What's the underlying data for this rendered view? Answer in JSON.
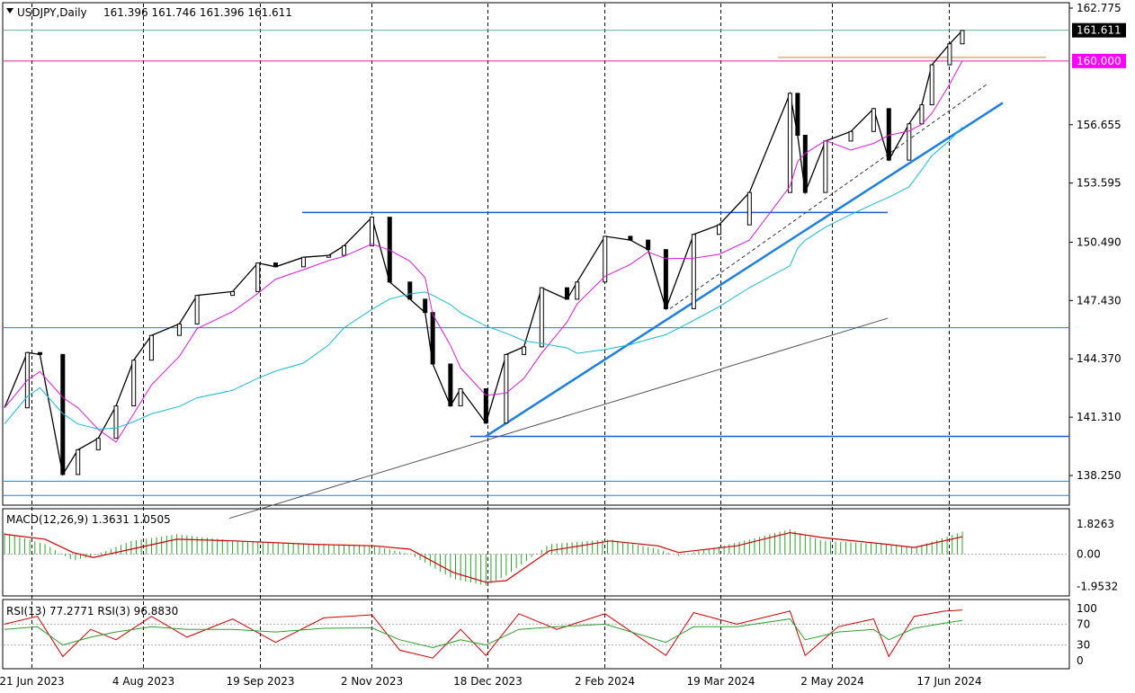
{
  "header": {
    "symbol": "USDJPY,Daily",
    "ohlc": "161.396 161.746 161.396 161.611"
  },
  "chart_data": {
    "type": "candlestick",
    "symbol": "USDJPY",
    "timeframe": "Daily",
    "current_price": "161.611",
    "key_level": "160.000",
    "price_axis": {
      "ticks": [
        "162.775",
        "156.655",
        "153.595",
        "150.490",
        "147.430",
        "144.370",
        "141.310",
        "138.250"
      ],
      "range": [
        135.9,
        163.3
      ]
    },
    "date_axis": {
      "ticks": [
        "21 Jun 2023",
        "4 Aug 2023",
        "19 Sep 2023",
        "2 Nov 2023",
        "18 Dec 2023",
        "2 Feb 2024",
        "19 Mar 2024",
        "2 May 2024",
        "17 Jun 2024"
      ]
    },
    "price_series": [
      {
        "date": "2023-06-21",
        "close": 141.8
      },
      {
        "date": "2023-06-30",
        "close": 144.7
      },
      {
        "date": "2023-07-05",
        "close": 144.6
      },
      {
        "date": "2023-07-14",
        "close": 138.3
      },
      {
        "date": "2023-07-20",
        "close": 139.6
      },
      {
        "date": "2023-07-28",
        "close": 140.2
      },
      {
        "date": "2023-08-04",
        "close": 141.9
      },
      {
        "date": "2023-08-11",
        "close": 144.3
      },
      {
        "date": "2023-08-18",
        "close": 145.6
      },
      {
        "date": "2023-08-29",
        "close": 146.2
      },
      {
        "date": "2023-09-05",
        "close": 147.7
      },
      {
        "date": "2023-09-19",
        "close": 147.9
      },
      {
        "date": "2023-09-29",
        "close": 149.4
      },
      {
        "date": "2023-10-06",
        "close": 149.2
      },
      {
        "date": "2023-10-17",
        "close": 149.7
      },
      {
        "date": "2023-10-27",
        "close": 149.8
      },
      {
        "date": "2023-11-02",
        "close": 150.3
      },
      {
        "date": "2023-11-13",
        "close": 151.8
      },
      {
        "date": "2023-11-20",
        "close": 148.4
      },
      {
        "date": "2023-11-28",
        "close": 147.5
      },
      {
        "date": "2023-12-04",
        "close": 146.8
      },
      {
        "date": "2023-12-07",
        "close": 144.1
      },
      {
        "date": "2023-12-14",
        "close": 141.9
      },
      {
        "date": "2023-12-18",
        "close": 142.8
      },
      {
        "date": "2023-12-28",
        "close": 141.0
      },
      {
        "date": "2024-01-05",
        "close": 144.6
      },
      {
        "date": "2024-01-12",
        "close": 145.0
      },
      {
        "date": "2024-01-19",
        "close": 148.1
      },
      {
        "date": "2024-01-29",
        "close": 147.5
      },
      {
        "date": "2024-02-02",
        "close": 148.4
      },
      {
        "date": "2024-02-13",
        "close": 150.8
      },
      {
        "date": "2024-02-23",
        "close": 150.6
      },
      {
        "date": "2024-03-01",
        "close": 150.1
      },
      {
        "date": "2024-03-08",
        "close": 147.0
      },
      {
        "date": "2024-03-19",
        "close": 150.9
      },
      {
        "date": "2024-03-29",
        "close": 151.4
      },
      {
        "date": "2024-04-10",
        "close": 153.1
      },
      {
        "date": "2024-04-26",
        "close": 158.3
      },
      {
        "date": "2024-04-29",
        "close": 156.1
      },
      {
        "date": "2024-05-02",
        "close": 153.1
      },
      {
        "date": "2024-05-10",
        "close": 155.8
      },
      {
        "date": "2024-05-20",
        "close": 156.3
      },
      {
        "date": "2024-05-29",
        "close": 157.5
      },
      {
        "date": "2024-06-04",
        "close": 154.8
      },
      {
        "date": "2024-06-12",
        "close": 156.7
      },
      {
        "date": "2024-06-17",
        "close": 157.7
      },
      {
        "date": "2024-06-21",
        "close": 159.8
      },
      {
        "date": "2024-06-28",
        "close": 160.9
      },
      {
        "date": "2024-07-03",
        "close": 161.6
      }
    ],
    "colors": {
      "ma_fast": "#d81bd8",
      "ma_slow": "#18b8d8",
      "trendline": "#1e7fe0",
      "level_line": "#e020a0",
      "macd_hist": "#2ca02c",
      "macd_signal": "#cc0000",
      "rsi_13": "#2ca02c",
      "rsi_3": "#cc0000",
      "price_label_bg": "#ff00ff"
    },
    "macd": {
      "label": "MACD(12,26,9) 1.3631 1.0505",
      "ticks": [
        "1.8263",
        "0.00",
        "-1.9532"
      ],
      "range": [
        -2.2,
        2.2
      ],
      "values": [
        {
          "date": "2023-06-21",
          "hist": 1.3,
          "signal": 1.2
        },
        {
          "date": "2023-07-07",
          "hist": 0.6,
          "signal": 0.9
        },
        {
          "date": "2023-07-18",
          "hist": -0.4,
          "signal": 0.1
        },
        {
          "date": "2023-07-26",
          "hist": -0.1,
          "signal": -0.2
        },
        {
          "date": "2023-08-10",
          "hist": 0.8,
          "signal": 0.3
        },
        {
          "date": "2023-08-28",
          "hist": 1.2,
          "signal": 0.9
        },
        {
          "date": "2023-09-20",
          "hist": 0.8,
          "signal": 0.8
        },
        {
          "date": "2023-10-20",
          "hist": 0.6,
          "signal": 0.6
        },
        {
          "date": "2023-11-14",
          "hist": 0.5,
          "signal": 0.5
        },
        {
          "date": "2023-11-28",
          "hist": 0.0,
          "signal": 0.3
        },
        {
          "date": "2023-12-15",
          "hist": -1.5,
          "signal": -1.1
        },
        {
          "date": "2023-12-28",
          "hist": -1.9,
          "signal": -1.7
        },
        {
          "date": "2024-01-05",
          "hist": -1.3,
          "signal": -1.6
        },
        {
          "date": "2024-01-22",
          "hist": 0.6,
          "signal": 0.2
        },
        {
          "date": "2024-02-15",
          "hist": 0.9,
          "signal": 0.8
        },
        {
          "date": "2024-03-05",
          "hist": 0.3,
          "signal": 0.5
        },
        {
          "date": "2024-03-13",
          "hist": -0.1,
          "signal": 0.1
        },
        {
          "date": "2024-04-05",
          "hist": 0.7,
          "signal": 0.5
        },
        {
          "date": "2024-04-26",
          "hist": 1.5,
          "signal": 1.3
        },
        {
          "date": "2024-05-09",
          "hist": 0.8,
          "signal": 1.0
        },
        {
          "date": "2024-06-03",
          "hist": 0.6,
          "signal": 0.6
        },
        {
          "date": "2024-06-14",
          "hist": 0.4,
          "signal": 0.4
        },
        {
          "date": "2024-07-03",
          "hist": 1.36,
          "signal": 1.05
        }
      ]
    },
    "rsi": {
      "label": "RSI(13) 77.2771  RSI(3) 96.8830",
      "ticks": [
        "100",
        "70",
        "30",
        "0"
      ],
      "levels": [
        70,
        30
      ],
      "values": [
        {
          "date": "2023-06-21",
          "rsi13": 60,
          "rsi3": 70
        },
        {
          "date": "2023-07-04",
          "rsi13": 65,
          "rsi3": 85
        },
        {
          "date": "2023-07-14",
          "rsi13": 30,
          "rsi3": 8
        },
        {
          "date": "2023-07-25",
          "rsi13": 45,
          "rsi3": 60
        },
        {
          "date": "2023-08-04",
          "rsi13": 55,
          "rsi3": 40
        },
        {
          "date": "2023-08-18",
          "rsi13": 65,
          "rsi3": 85
        },
        {
          "date": "2023-09-01",
          "rsi13": 60,
          "rsi3": 45
        },
        {
          "date": "2023-09-19",
          "rsi13": 60,
          "rsi3": 80
        },
        {
          "date": "2023-10-06",
          "rsi13": 55,
          "rsi3": 35
        },
        {
          "date": "2023-10-25",
          "rsi13": 62,
          "rsi3": 82
        },
        {
          "date": "2023-11-13",
          "rsi13": 63,
          "rsi3": 88
        },
        {
          "date": "2023-11-24",
          "rsi13": 40,
          "rsi3": 20
        },
        {
          "date": "2023-12-07",
          "rsi13": 25,
          "rsi3": 5
        },
        {
          "date": "2023-12-18",
          "rsi13": 40,
          "rsi3": 60
        },
        {
          "date": "2023-12-28",
          "rsi13": 30,
          "rsi3": 10
        },
        {
          "date": "2024-01-10",
          "rsi13": 60,
          "rsi3": 90
        },
        {
          "date": "2024-01-25",
          "rsi13": 65,
          "rsi3": 60
        },
        {
          "date": "2024-02-13",
          "rsi13": 70,
          "rsi3": 90
        },
        {
          "date": "2024-03-08",
          "rsi13": 35,
          "rsi3": 10
        },
        {
          "date": "2024-03-19",
          "rsi13": 65,
          "rsi3": 92
        },
        {
          "date": "2024-04-05",
          "rsi13": 65,
          "rsi3": 70
        },
        {
          "date": "2024-04-26",
          "rsi13": 80,
          "rsi3": 95
        },
        {
          "date": "2024-05-02",
          "rsi13": 40,
          "rsi3": 10
        },
        {
          "date": "2024-05-15",
          "rsi13": 55,
          "rsi3": 65
        },
        {
          "date": "2024-05-29",
          "rsi13": 60,
          "rsi3": 80
        },
        {
          "date": "2024-06-04",
          "rsi13": 40,
          "rsi3": 8
        },
        {
          "date": "2024-06-14",
          "rsi13": 62,
          "rsi3": 85
        },
        {
          "date": "2024-06-26",
          "rsi13": 72,
          "rsi3": 95
        },
        {
          "date": "2024-07-03",
          "rsi13": 77.3,
          "rsi3": 96.9
        }
      ]
    }
  }
}
